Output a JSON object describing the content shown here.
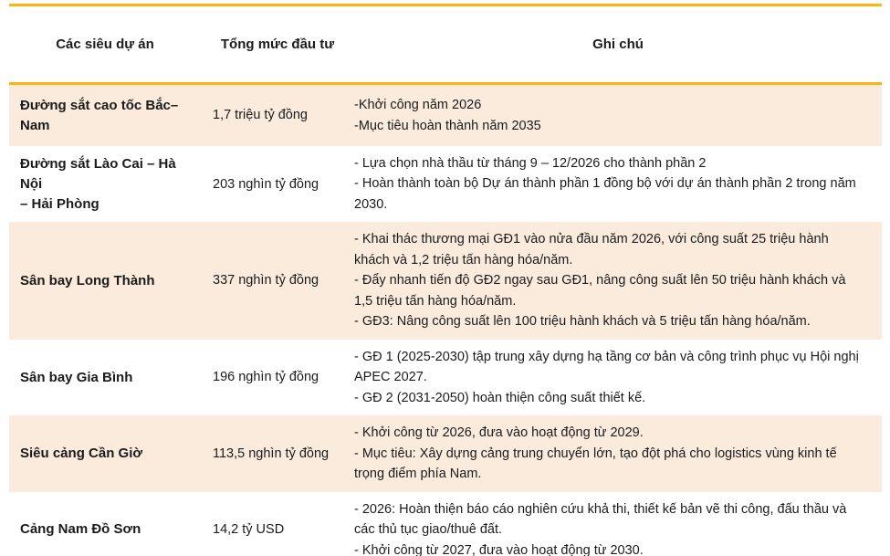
{
  "colors": {
    "accent_line": "#FCB415",
    "shaded_row_bg": "#FBEBDD",
    "text": "#1B1B1B"
  },
  "table": {
    "headers": {
      "projects": "Các siêu dự án",
      "investment": "Tổng mức đầu tư",
      "notes": "Ghi chú"
    },
    "rows": [
      {
        "name": "Đường sắt cao tốc Bắc–Nam",
        "investment": "1,7 triệu tỷ đồng",
        "notes": "-Khởi công năm 2026\n-Mục tiêu hoàn thành năm 2035"
      },
      {
        "name": "Đường sắt Lào Cai –  Hà Nội\n– Hải Phòng",
        "investment": "203 nghìn tỷ đồng",
        "notes": "- Lựa chọn nhà thầu từ tháng 9 – 12/2026 cho thành phần 2\n- Hoàn thành toàn bộ Dự án thành phần 1 đồng bộ với dự án thành phần 2 trong năm 2030."
      },
      {
        "name": "Sân bay Long Thành",
        "investment": "337 nghìn tỷ đồng",
        "notes": "- Khai thác thương mại GĐ1 vào nửa đầu năm 2026, với công suất 25 triệu hành khách và 1,2 triệu tấn hàng hóa/năm.\n- Đẩy nhanh tiến độ GĐ2 ngay sau GĐ1, nâng công suất lên 50 triệu hành khách và 1,5 triệu tấn hàng hóa/năm.\n- GĐ3: Nâng công suất lên 100 triệu hành khách và 5 triệu tấn hàng hóa/năm."
      },
      {
        "name": "Sân bay Gia Bình",
        "investment": "196 nghìn tỷ đồng",
        "notes": "- GĐ 1 (2025-2030) tập trung xây dựng hạ tầng cơ bản và công trình phục vụ Hội nghị APEC 2027.\n- GĐ 2 (2031-2050) hoàn thiện công suất thiết kế."
      },
      {
        "name": "Siêu cảng Cần Giờ",
        "investment": "113,5 nghìn tỷ đồng",
        "notes": "- Khởi công từ 2026, đưa vào hoạt động từ 2029.\n- Mục tiêu: Xây dựng cảng trung chuyển lớn, tạo đột phá cho logistics vùng kinh tế trọng điểm phía Nam."
      },
      {
        "name": "Cảng Nam Đồ Sơn",
        "investment": "14,2 tỷ USD",
        "notes": "- 2026: Hoàn thiện báo cáo nghiên cứu khả thi, thiết kế bản vẽ thi công, đấu thầu và các thủ tục giao/thuê đất.\n- Khởi công từ 2027, đưa vào hoạt động từ 2030."
      }
    ]
  }
}
